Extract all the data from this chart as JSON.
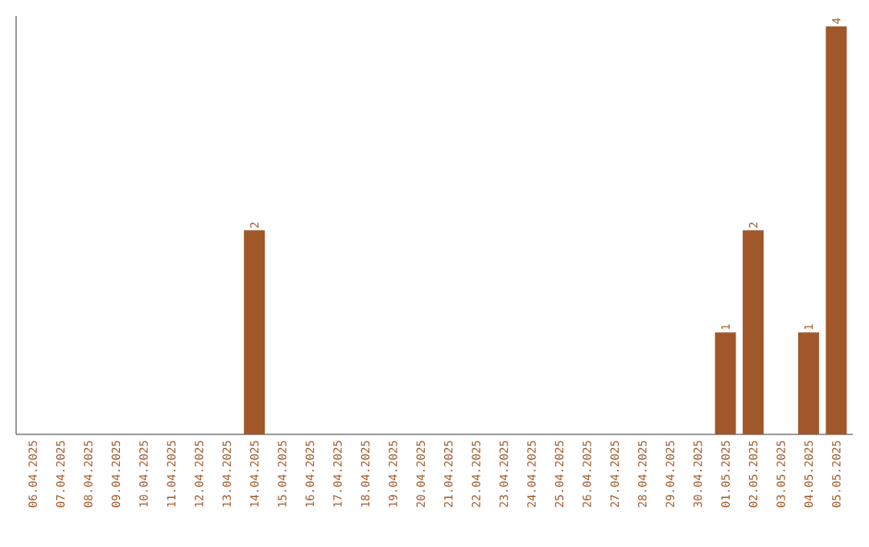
{
  "chart_data": {
    "type": "bar",
    "categories": [
      "06.04.2025",
      "07.04.2025",
      "08.04.2025",
      "09.04.2025",
      "10.04.2025",
      "11.04.2025",
      "12.04.2025",
      "13.04.2025",
      "14.04.2025",
      "15.04.2025",
      "16.04.2025",
      "17.04.2025",
      "18.04.2025",
      "19.04.2025",
      "20.04.2025",
      "21.04.2025",
      "22.04.2025",
      "23.04.2025",
      "24.04.2025",
      "25.04.2025",
      "26.04.2025",
      "27.04.2025",
      "28.04.2025",
      "29.04.2025",
      "30.04.2025",
      "01.05.2025",
      "02.05.2025",
      "03.05.2025",
      "04.05.2025",
      "05.05.2025"
    ],
    "values": [
      0,
      0,
      0,
      0,
      0,
      0,
      0,
      0,
      2,
      0,
      0,
      0,
      0,
      0,
      0,
      0,
      0,
      0,
      0,
      0,
      0,
      0,
      0,
      0,
      0,
      1,
      2,
      0,
      1,
      4
    ],
    "value_labels": [
      null,
      null,
      null,
      null,
      null,
      null,
      null,
      null,
      "2",
      null,
      null,
      null,
      null,
      null,
      null,
      null,
      null,
      null,
      null,
      null,
      null,
      null,
      null,
      null,
      null,
      "1",
      "2",
      null,
      "1",
      "4"
    ],
    "color": "#a0582a",
    "tick_labels": "x",
    "grid": false
  }
}
